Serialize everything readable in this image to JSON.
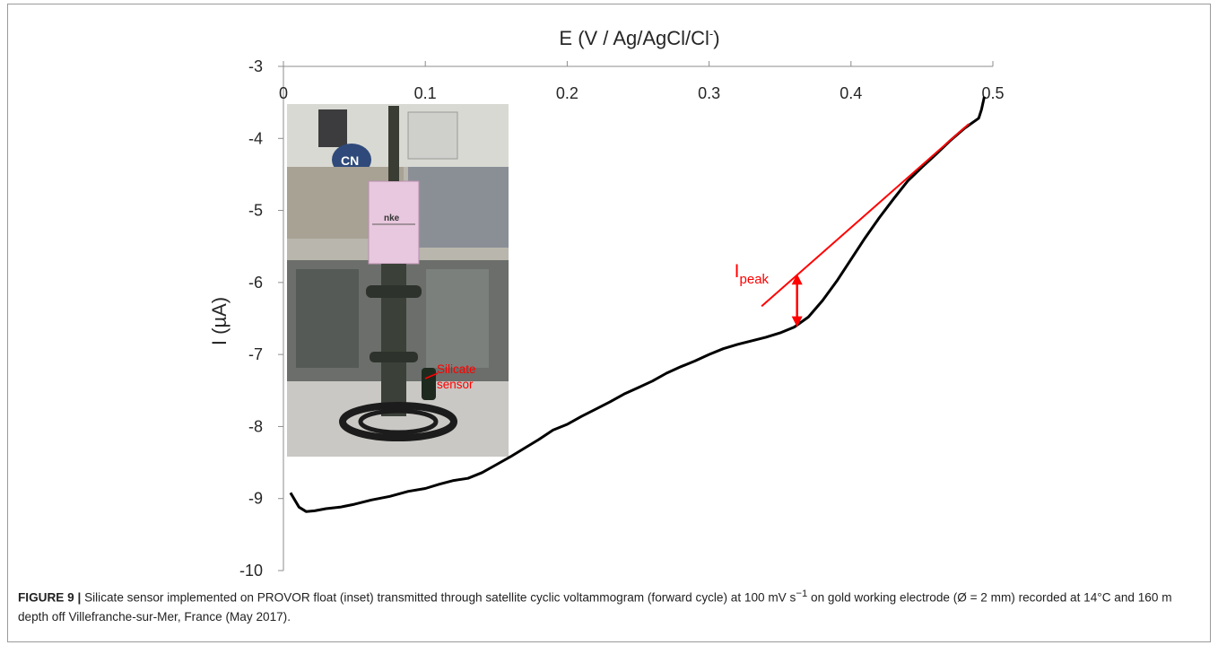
{
  "chart_data": {
    "type": "line",
    "xlabel": "E (V / Ag/AgCl/Cl",
    "xlabel_sup": "-",
    "xlabel_end": ")",
    "ylabel": "I (µA)",
    "x_axis_position": "top",
    "xlim": [
      0,
      0.5
    ],
    "ylim": [
      -10,
      -3
    ],
    "x_ticks": [
      "0",
      "0.1",
      "0.2",
      "0.3",
      "0.4",
      "0.5"
    ],
    "y_ticks": [
      "-3",
      "-4",
      "-5",
      "-6",
      "-7",
      "-8",
      "-9",
      "-10"
    ],
    "grid": false,
    "series": [
      {
        "color": "#000000",
        "points": [
          [
            0.005,
            -8.92
          ],
          [
            0.011,
            -9.12
          ],
          [
            0.016,
            -9.18
          ],
          [
            0.022,
            -9.17
          ],
          [
            0.03,
            -9.14
          ],
          [
            0.04,
            -9.12
          ],
          [
            0.05,
            -9.08
          ],
          [
            0.062,
            -9.02
          ],
          [
            0.075,
            -8.97
          ],
          [
            0.088,
            -8.9
          ],
          [
            0.1,
            -8.86
          ],
          [
            0.11,
            -8.8
          ],
          [
            0.12,
            -8.75
          ],
          [
            0.13,
            -8.72
          ],
          [
            0.14,
            -8.64
          ],
          [
            0.15,
            -8.53
          ],
          [
            0.16,
            -8.42
          ],
          [
            0.17,
            -8.3
          ],
          [
            0.18,
            -8.18
          ],
          [
            0.19,
            -8.05
          ],
          [
            0.2,
            -7.97
          ],
          [
            0.21,
            -7.86
          ],
          [
            0.22,
            -7.76
          ],
          [
            0.23,
            -7.66
          ],
          [
            0.24,
            -7.55
          ],
          [
            0.25,
            -7.46
          ],
          [
            0.26,
            -7.37
          ],
          [
            0.27,
            -7.26
          ],
          [
            0.28,
            -7.17
          ],
          [
            0.29,
            -7.09
          ],
          [
            0.3,
            -7.0
          ],
          [
            0.31,
            -6.92
          ],
          [
            0.32,
            -6.86
          ],
          [
            0.33,
            -6.81
          ],
          [
            0.34,
            -6.76
          ],
          [
            0.35,
            -6.7
          ],
          [
            0.36,
            -6.62
          ],
          [
            0.37,
            -6.48
          ],
          [
            0.38,
            -6.25
          ],
          [
            0.39,
            -5.98
          ],
          [
            0.4,
            -5.68
          ],
          [
            0.41,
            -5.38
          ],
          [
            0.42,
            -5.1
          ],
          [
            0.43,
            -4.84
          ],
          [
            0.44,
            -4.59
          ],
          [
            0.45,
            -4.4
          ],
          [
            0.46,
            -4.22
          ],
          [
            0.47,
            -4.03
          ],
          [
            0.48,
            -3.86
          ],
          [
            0.49,
            -3.72
          ],
          [
            0.492,
            -3.6
          ],
          [
            0.494,
            -3.42
          ]
        ]
      }
    ],
    "tangent": {
      "color": "#ff0000",
      "from": [
        0.337,
        -6.33
      ],
      "to": [
        0.483,
        -3.8
      ]
    },
    "peak_arrow": {
      "color": "#ff0000",
      "x": 0.362,
      "y_top": -5.88,
      "y_bottom": -6.62
    },
    "annotations": {
      "ipeak": "I",
      "ipeak_sub": "peak",
      "inset_label_1": "Silicate",
      "inset_label_2": "sensor"
    }
  },
  "inset_photo": {
    "sign_text": "nke",
    "cnrs_text": "CN"
  },
  "caption": {
    "label": "FIGURE 9 |",
    "text": "Silicate sensor implemented on PROVOR float (inset) transmitted through satellite cyclic voltammogram (forward cycle) at 100 mV s",
    "sup": "−1",
    "text2": " on gold working electrode (Ø = 2 mm) recorded at 14°C and 160 m depth off Villefranche-sur-Mer, France (May 2017)."
  }
}
